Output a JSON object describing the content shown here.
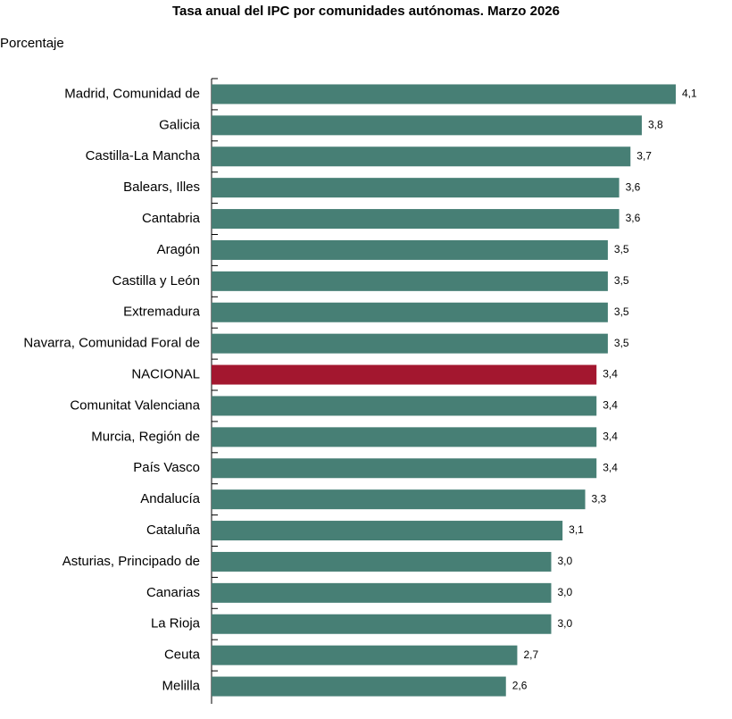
{
  "chart_data": {
    "type": "hbar",
    "title": "Tasa anual del IPC por comunidades autónomas. Marzo 2026",
    "subtitle": "Porcentaje",
    "categories": [
      "Madrid, Comunidad de",
      "Galicia",
      "Castilla-La Mancha",
      "Balears, Illes",
      "Cantabria",
      "Aragón",
      "Castilla y León",
      "Extremadura",
      "Navarra, Comunidad Foral de",
      "NACIONAL",
      "Comunitat Valenciana",
      "Murcia, Región de",
      "País Vasco",
      "Andalucía",
      "Cataluña",
      "Asturias, Principado de",
      "Canarias",
      "La Rioja",
      "Ceuta",
      "Melilla"
    ],
    "values": [
      4.1,
      3.8,
      3.7,
      3.6,
      3.6,
      3.5,
      3.5,
      3.5,
      3.5,
      3.4,
      3.4,
      3.4,
      3.4,
      3.3,
      3.1,
      3.0,
      3.0,
      3.0,
      2.7,
      2.6
    ],
    "value_labels": [
      "4,1",
      "3,8",
      "3,7",
      "3,6",
      "3,6",
      "3,5",
      "3,5",
      "3,5",
      "3,5",
      "3,4",
      "3,4",
      "3,4",
      "3,4",
      "3,3",
      "3,1",
      "3,0",
      "3,0",
      "3,0",
      "2,7",
      "2,6"
    ],
    "colors": [
      "#477f75",
      "#477f75",
      "#477f75",
      "#477f75",
      "#477f75",
      "#477f75",
      "#477f75",
      "#477f75",
      "#477f75",
      "#a3172f",
      "#477f75",
      "#477f75",
      "#477f75",
      "#477f75",
      "#477f75",
      "#477f75",
      "#477f75",
      "#477f75",
      "#477f75",
      "#477f75"
    ],
    "xlim": [
      0,
      4.1
    ]
  }
}
